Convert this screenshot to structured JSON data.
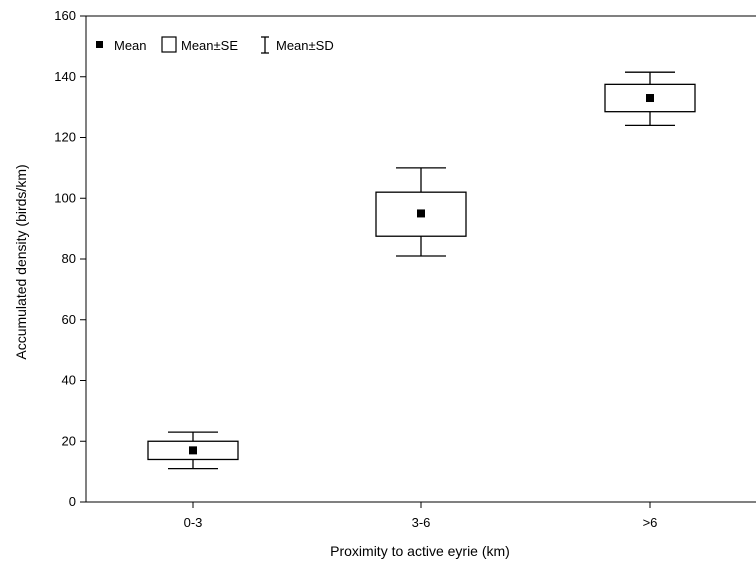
{
  "chart_data": {
    "type": "box",
    "xlabel": "Proximity to active eyrie (km)",
    "ylabel": "Accumulated density (birds/km)",
    "ylim": [
      0,
      160
    ],
    "yticks": [
      0,
      20,
      40,
      60,
      80,
      100,
      120,
      140,
      160
    ],
    "categories": [
      "0-3",
      "3-6",
      ">6"
    ],
    "series": [
      {
        "category": "0-3",
        "mean": 17,
        "se_low": 14,
        "se_high": 20,
        "sd_low": 11,
        "sd_high": 23
      },
      {
        "category": "3-6",
        "mean": 95,
        "se_low": 87.5,
        "se_high": 102,
        "sd_low": 81,
        "sd_high": 110
      },
      {
        "category": ">6",
        "mean": 133,
        "se_low": 128.5,
        "se_high": 137.5,
        "sd_low": 124,
        "sd_high": 141.5
      }
    ],
    "legend": {
      "position": "top-left",
      "items": [
        {
          "symbol": "filled-square",
          "label": "Mean"
        },
        {
          "symbol": "box",
          "label": "Mean±SE"
        },
        {
          "symbol": "whisker",
          "label": "Mean±SD"
        }
      ]
    },
    "grid": false
  }
}
